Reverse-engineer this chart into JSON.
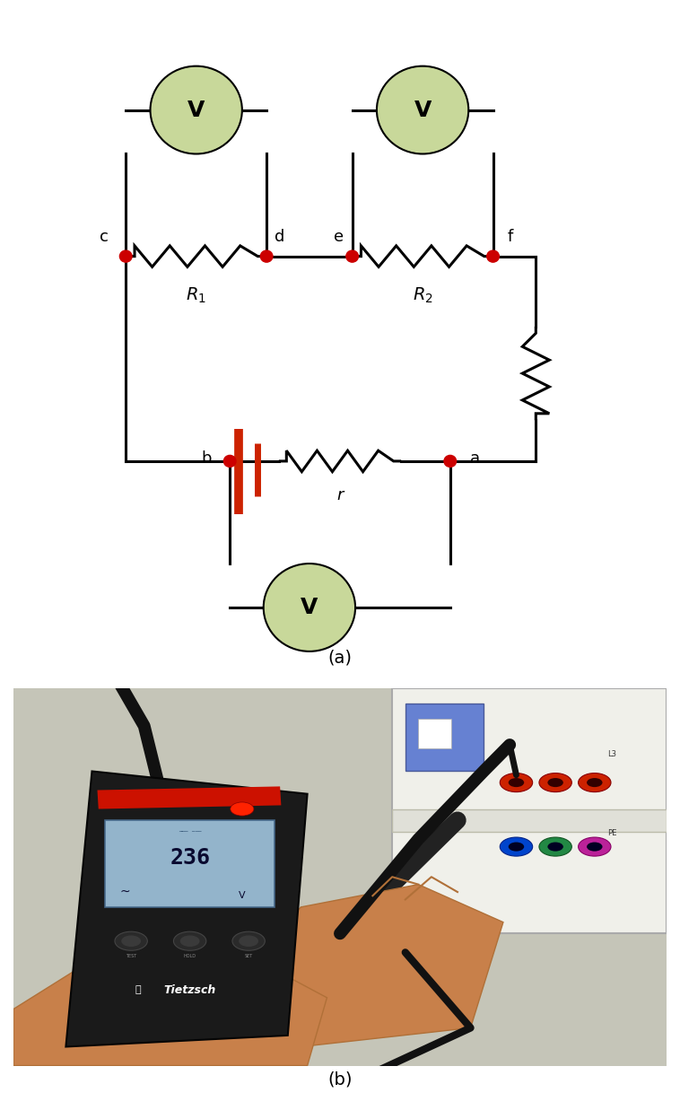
{
  "fig_width": 7.58,
  "fig_height": 12.37,
  "dpi": 100,
  "bg_color": "#ffffff",
  "voltmeter_color": "#c8d89a",
  "wire_color": "#000000",
  "wire_lw": 2.2,
  "node_color": "#cc0000",
  "battery_color": "#cc2200",
  "caption_a": "(a)",
  "caption_b": "(b)",
  "label_R1": "$R_1$",
  "label_R2": "$R_2$",
  "label_r": "r",
  "photo_bg": "#c8c8c0",
  "photo_panel_bg": "#f0f0ea",
  "device_color": "#1a1a1a",
  "lcd_color": "#a8c8e0",
  "skin_color": "#d4956a",
  "probe_color": "#111111"
}
